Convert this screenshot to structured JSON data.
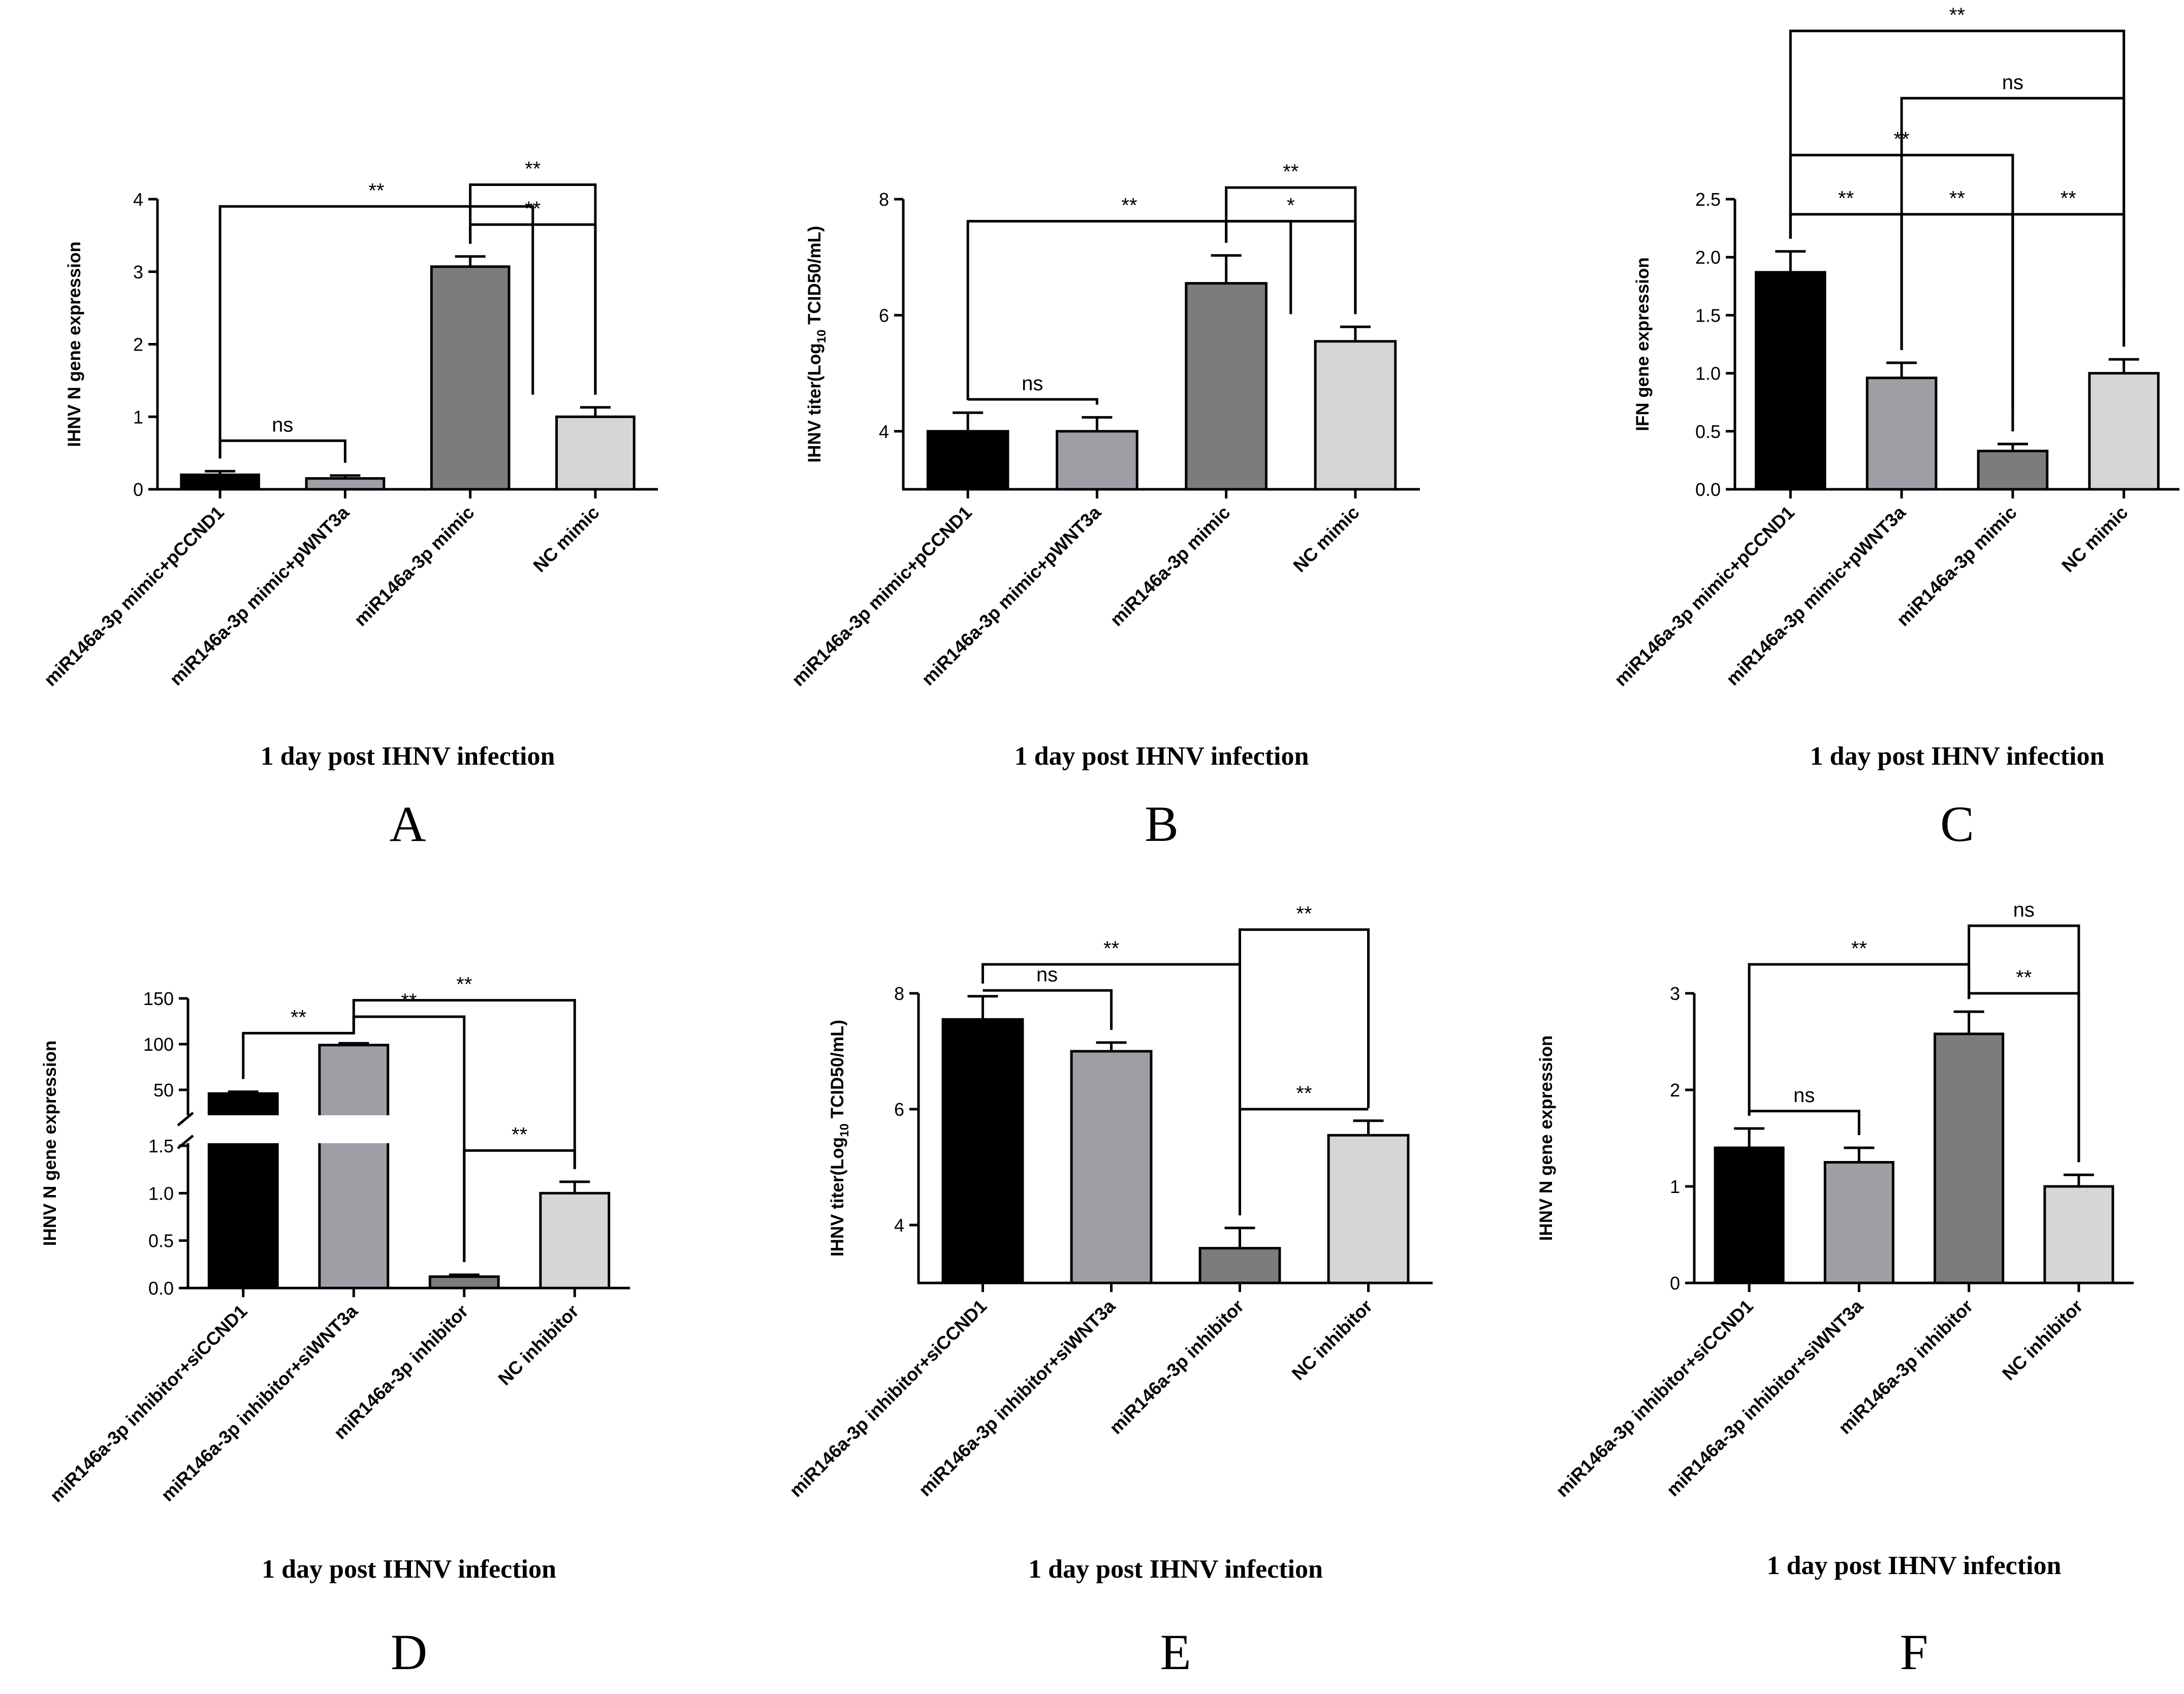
{
  "figure": {
    "xlabel": "1 day post IHNV infection"
  },
  "chart_data": [
    {
      "panel": "A",
      "type": "bar",
      "ylabel": "IHNV N gene expression",
      "xlabel": "1 day post IHNV infection",
      "categories": [
        "miR146a-3p mimic+pCCND1",
        "miR146a-3p mimic+pWNT3a",
        "miR146a-3p mimic",
        "NC mimic"
      ],
      "values": [
        0.2,
        0.15,
        3.07,
        1.0
      ],
      "errors": [
        0.05,
        0.04,
        0.14,
        0.13
      ],
      "colors": [
        "#000000",
        "#9e9ea4",
        "#7c7c7c",
        "#d6d6d6"
      ],
      "ylim": [
        0,
        4
      ],
      "yticks": [
        0,
        1,
        2,
        3,
        4
      ],
      "ytick_labels": [
        "0",
        "1",
        "2",
        "3",
        "4"
      ],
      "brackets": [
        {
          "label": "ns",
          "type": "pair",
          "from": 0,
          "to": 1,
          "y": 0.67
        },
        {
          "label": "**",
          "type": "pair",
          "from": 2,
          "to": 3,
          "y": 3.65
        },
        {
          "label": "**",
          "type": "nested",
          "from": 0,
          "to_left": 2,
          "to_right": 3,
          "y": 3.9,
          "y_from": 1.5,
          "y_to": 3.65
        },
        {
          "label": "**",
          "type": "nested",
          "from": 2,
          "to_left": 3,
          "to_right": 3,
          "y": 4.2,
          "y_from": 3.9,
          "y_to": 3.65
        }
      ]
    },
    {
      "panel": "B",
      "type": "bar",
      "ylabel": "IHNV  titer(Log",
      "ylabel_sub": "10",
      "ylabel_tail": " TCID50/mL)",
      "xlabel": "1 day post IHNV infection",
      "categories": [
        "miR146a-3p mimic+pCCND1",
        "miR146a-3p mimic+pWNT3a",
        "miR146a-3p mimic",
        "NC mimic"
      ],
      "values": [
        4.0,
        4.0,
        6.55,
        5.55
      ],
      "errors": [
        0.32,
        0.24,
        0.48,
        0.25
      ],
      "colors": [
        "#000000",
        "#9e9ea4",
        "#7c7c7c",
        "#d6d6d6"
      ],
      "ylim": [
        3,
        8
      ],
      "yticks": [
        4,
        6,
        8
      ],
      "ytick_labels": [
        "4",
        "6",
        "8"
      ],
      "brackets": [
        {
          "label": "ns",
          "type": "pair",
          "from": 0,
          "to": 1,
          "y": 4.55
        },
        {
          "label": "*",
          "type": "pair",
          "from": 2,
          "to": 3,
          "y": 7.62
        },
        {
          "label": "**",
          "type": "nested",
          "from": 0,
          "to_left": 2,
          "to_right": 3,
          "y": 7.62,
          "y_from": 4.55,
          "y_to": 7.62
        },
        {
          "label": "**",
          "type": "nested",
          "from": 2,
          "to_left": 3,
          "to_right": 3,
          "y": 8.2,
          "y_from": 7.62,
          "y_to": 7.62
        }
      ]
    },
    {
      "panel": "C",
      "type": "bar",
      "ylabel": "IFN gene expression",
      "xlabel": "1 day post IHNV infection",
      "categories": [
        "miR146a-3p mimic+pCCND1",
        "miR146a-3p mimic+pWNT3a",
        "miR146a-3p mimic",
        "NC mimic"
      ],
      "values": [
        1.87,
        0.96,
        0.33,
        1.0
      ],
      "errors": [
        0.18,
        0.13,
        0.06,
        0.12
      ],
      "colors": [
        "#000000",
        "#9e9ea4",
        "#7c7c7c",
        "#d6d6d6"
      ],
      "ylim": [
        0,
        2.5
      ],
      "yticks": [
        0,
        0.5,
        1.0,
        1.5,
        2.0,
        2.5
      ],
      "ytick_labels": [
        "0.0",
        "0.5",
        "1.0",
        "1.5",
        "2.0",
        "2.5"
      ],
      "brackets": [
        {
          "label": "**",
          "type": "pair",
          "from": 0,
          "to": 1,
          "y": 2.37
        },
        {
          "label": "**",
          "type": "pair",
          "from": 1,
          "to": 2,
          "y": 2.37
        },
        {
          "label": "**",
          "type": "pair",
          "from": 2,
          "to": 3,
          "y": 2.37
        },
        {
          "label": "**",
          "type": "pair",
          "from": 0,
          "to": 2,
          "y": 2.88
        },
        {
          "label": "ns",
          "type": "pair",
          "from": 1,
          "to": 3,
          "y": 3.37
        },
        {
          "label": "**",
          "type": "pair",
          "from": 0,
          "to": 3,
          "y": 3.95
        }
      ]
    },
    {
      "panel": "D",
      "type": "bar",
      "ylabel": "IHNV N gene expression",
      "xlabel": "1 day post IHNV infection",
      "broken_axis": true,
      "categories": [
        "miR146a-3p inhibitor+siCCND1",
        "miR146a-3p inhibitor+siWNT3a",
        "miR146a-3p inhibitor",
        "NC inhibitor"
      ],
      "values": [
        46,
        99,
        0.12,
        1.0
      ],
      "errors": [
        2,
        2,
        0.02,
        0.12
      ],
      "colors": [
        "#000000",
        "#9e9ea4",
        "#7c7c7c",
        "#d6d6d6"
      ],
      "lower_ylim": [
        0,
        1.5
      ],
      "upper_ylim": [
        25,
        150
      ],
      "lower_yticks": [
        0,
        0.5,
        1.0,
        1.5
      ],
      "lower_ytick_labels": [
        "0.0",
        "0.5",
        "1.0",
        "1.5"
      ],
      "upper_yticks": [
        50,
        100,
        150
      ],
      "upper_ytick_labels": [
        "50",
        "100",
        "150"
      ],
      "brackets": [
        {
          "label": "**",
          "type": "pair",
          "from": 2,
          "to": 3,
          "y": "lower:1.45"
        },
        {
          "label": "**",
          "type": "nested",
          "from": 0,
          "to_left": 1,
          "to_right": 1,
          "y": "upper:112"
        },
        {
          "label": "**",
          "type": "nested",
          "from": 1,
          "to_left": 2,
          "to_right": 2,
          "y": "upper:130"
        },
        {
          "label": "**",
          "type": "nested",
          "from": 1,
          "to_left": 3,
          "to_right": 3,
          "y": "upper:148"
        }
      ]
    },
    {
      "panel": "E",
      "type": "bar",
      "ylabel": "IHNV  titer(Log",
      "ylabel_sub": "10",
      "ylabel_tail": " TCID50/mL)",
      "xlabel": "1 day post IHNV infection",
      "categories": [
        "miR146a-3p inhibitor+siCCND1",
        "miR146a-3p inhibitor+siWNT3a",
        "miR146a-3p inhibitor",
        "NC inhibitor"
      ],
      "values": [
        7.55,
        7.0,
        3.6,
        5.55
      ],
      "errors": [
        0.4,
        0.15,
        0.35,
        0.25
      ],
      "colors": [
        "#000000",
        "#9e9ea4",
        "#7c7c7c",
        "#d6d6d6"
      ],
      "ylim": [
        3,
        8
      ],
      "yticks": [
        4,
        6,
        8
      ],
      "ytick_labels": [
        "4",
        "6",
        "8"
      ],
      "brackets": [
        {
          "label": "**",
          "type": "pair",
          "from": 2,
          "to": 3,
          "y": 6.0
        },
        {
          "label": "ns",
          "type": "pair",
          "from": 0,
          "to": 1,
          "y": 8.05
        },
        {
          "label": "**",
          "type": "nested",
          "from": 0,
          "to_left": 2,
          "to_right": 2,
          "y": 8.5
        },
        {
          "label": "**",
          "type": "nested",
          "from": 2,
          "to_left": 3,
          "to_right": 3,
          "y": 9.1
        }
      ]
    },
    {
      "panel": "F",
      "type": "bar",
      "ylabel": "IHNV N gene expression",
      "xlabel": "1 day post IHNV infection",
      "categories": [
        "miR146a-3p inhibitor+siCCND1",
        "miR146a-3p inhibitor+siWNT3a",
        "miR146a-3p inhibitor",
        "NC inhibitor"
      ],
      "values": [
        1.4,
        1.25,
        2.58,
        1.0
      ],
      "errors": [
        0.2,
        0.15,
        0.23,
        0.12
      ],
      "colors": [
        "#000000",
        "#9e9ea4",
        "#7c7c7c",
        "#d6d6d6"
      ],
      "ylim": [
        0,
        3
      ],
      "yticks": [
        0,
        1,
        2,
        3
      ],
      "ytick_labels": [
        "0",
        "1",
        "2",
        "3"
      ],
      "brackets": [
        {
          "label": "ns",
          "type": "pair",
          "from": 0,
          "to": 1,
          "y": 1.78
        },
        {
          "label": "**",
          "type": "pair",
          "from": 2,
          "to": 3,
          "y": 3.0
        },
        {
          "label": "**",
          "type": "nested",
          "from": 0,
          "to_left": 2,
          "to_right": 2,
          "y": 3.3
        },
        {
          "label": "ns",
          "type": "nested",
          "from": 2,
          "to_left": 3,
          "to_right": 3,
          "y": 3.7
        }
      ]
    }
  ]
}
